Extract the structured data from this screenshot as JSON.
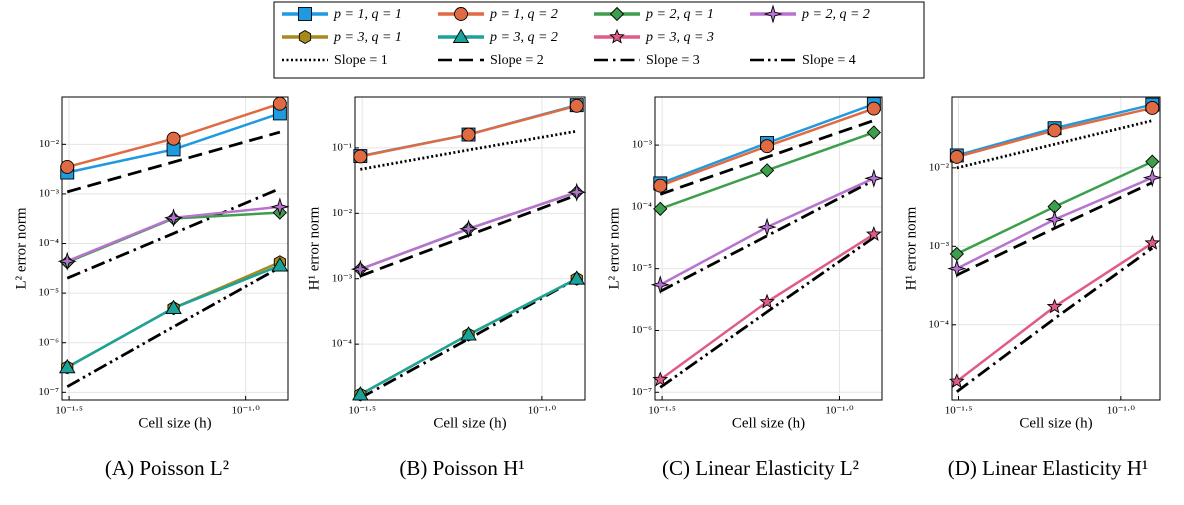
{
  "legend": {
    "entries": [
      {
        "name": "p = 1, q = 1",
        "color": "#1f9ae0",
        "marker": "square"
      },
      {
        "name": "p = 1, q = 2",
        "color": "#e06a42",
        "marker": "circle"
      },
      {
        "name": "p = 2, q = 1",
        "color": "#3d9e4c",
        "marker": "diamond"
      },
      {
        "name": "p = 2, q = 2",
        "color": "#b872cf",
        "marker": "star4"
      },
      {
        "name": "p = 3, q = 1",
        "color": "#a8891b",
        "marker": "hexagon"
      },
      {
        "name": "p = 3, q = 2",
        "color": "#19a39a",
        "marker": "triangle"
      },
      {
        "name": "p = 3, q = 3",
        "color": "#e05a8c",
        "marker": "star5"
      },
      {
        "name": "Slope = 1",
        "color": "#000000",
        "dash": "dotted"
      },
      {
        "name": "Slope = 2",
        "color": "#000000",
        "dash": "dashed"
      },
      {
        "name": "Slope = 3",
        "color": "#000000",
        "dash": "dashdot"
      },
      {
        "name": "Slope = 4",
        "color": "#000000",
        "dash": "dashdotdot"
      }
    ]
  },
  "chart_data": [
    {
      "type": "line",
      "caption": "(A) Poisson L²",
      "x_label": "Cell size (h)",
      "y_label": "L² error norm",
      "xscale": "log",
      "yscale": "log",
      "grid": true,
      "x": [
        0.03125,
        0.0625,
        0.125
      ],
      "xlim": [
        0.0302,
        0.1318
      ],
      "xticks": [
        {
          "value": 0.031623,
          "label": "10⁻¹·⁵"
        },
        {
          "value": 0.1,
          "label": "10⁻¹·⁰"
        }
      ],
      "ylim": [
        7e-08,
        0.09
      ],
      "yticks": [
        {
          "value": 1e-07,
          "label": "10⁻⁷"
        },
        {
          "value": 1e-06,
          "label": "10⁻⁶"
        },
        {
          "value": 1e-05,
          "label": "10⁻⁵"
        },
        {
          "value": 0.0001,
          "label": "10⁻⁴"
        },
        {
          "value": 0.001,
          "label": "10⁻³"
        },
        {
          "value": 0.01,
          "label": "10⁻²"
        }
      ],
      "series": [
        {
          "name": "Slope = 2",
          "values": [
            0.0011,
            0.0044,
            0.0176
          ]
        },
        {
          "name": "Slope = 3",
          "values": [
            2e-05,
            0.00016,
            0.00128
          ]
        },
        {
          "name": "Slope = 4",
          "values": [
            1.3e-07,
            2.1e-06,
            3.3e-05
          ]
        },
        {
          "name": "p = 1, q = 1",
          "values": [
            0.0027,
            0.0079,
            0.042
          ]
        },
        {
          "name": "p = 1, q = 2",
          "values": [
            0.0035,
            0.013,
            0.066
          ]
        },
        {
          "name": "p = 2, q = 1",
          "values": [
            4.2e-05,
            0.00032,
            0.00042
          ]
        },
        {
          "name": "p = 2, q = 2",
          "values": [
            4.4e-05,
            0.00033,
            0.00055
          ]
        },
        {
          "name": "p = 3, q = 1",
          "values": [
            3.2e-07,
            5e-06,
            4.2e-05
          ]
        },
        {
          "name": "p = 3, q = 2",
          "values": [
            3.2e-07,
            5e-06,
            3.6e-05
          ]
        }
      ]
    },
    {
      "type": "line",
      "caption": "(B) Poisson H¹",
      "x_label": "Cell size (h)",
      "y_label": "H¹ error norm",
      "xscale": "log",
      "yscale": "log",
      "grid": true,
      "x": [
        0.03125,
        0.0625,
        0.125
      ],
      "xlim": [
        0.0302,
        0.1318
      ],
      "xticks": [
        {
          "value": 0.031623,
          "label": "10⁻¹·⁵"
        },
        {
          "value": 0.1,
          "label": "10⁻¹·⁰"
        }
      ],
      "ylim": [
        1.4e-05,
        0.6
      ],
      "yticks": [
        {
          "value": 0.0001,
          "label": "10⁻⁴"
        },
        {
          "value": 0.001,
          "label": "10⁻³"
        },
        {
          "value": 0.01,
          "label": "10⁻²"
        },
        {
          "value": 0.1,
          "label": "10⁻¹"
        }
      ],
      "series": [
        {
          "name": "Slope = 1",
          "values": [
            0.047,
            0.093,
            0.18
          ]
        },
        {
          "name": "Slope = 2",
          "values": [
            0.0011,
            0.0046,
            0.019
          ]
        },
        {
          "name": "Slope = 3",
          "values": [
            1.5e-05,
            0.00012,
            0.001
          ]
        },
        {
          "name": "p = 1, q = 1",
          "values": [
            0.075,
            0.16,
            0.45
          ]
        },
        {
          "name": "p = 1, q = 2",
          "values": [
            0.074,
            0.16,
            0.44
          ]
        },
        {
          "name": "p = 2, q = 1",
          "values": [
            0.0014,
            0.0058,
            0.021
          ]
        },
        {
          "name": "p = 2, q = 2",
          "values": [
            0.0014,
            0.0058,
            0.021
          ]
        },
        {
          "name": "p = 3, q = 1",
          "values": [
            1.7e-05,
            0.00014,
            0.001
          ]
        },
        {
          "name": "p = 3, q = 2",
          "values": [
            1.7e-05,
            0.00014,
            0.001
          ]
        }
      ]
    },
    {
      "type": "line",
      "caption": "(C) Linear Elasticity L²",
      "x_label": "Cell size (h)",
      "y_label": "L² error norm",
      "xscale": "log",
      "yscale": "log",
      "grid": true,
      "x": [
        0.03125,
        0.0625,
        0.125
      ],
      "xlim": [
        0.0302,
        0.1318
      ],
      "xticks": [
        {
          "value": 0.031623,
          "label": "10⁻¹·⁵"
        },
        {
          "value": 0.1,
          "label": "10⁻¹·⁰"
        }
      ],
      "ylim": [
        7.5e-08,
        0.006
      ],
      "yticks": [
        {
          "value": 1e-07,
          "label": "10⁻⁷"
        },
        {
          "value": 1e-06,
          "label": "10⁻⁶"
        },
        {
          "value": 1e-05,
          "label": "10⁻⁵"
        },
        {
          "value": 0.0001,
          "label": "10⁻⁴"
        },
        {
          "value": 0.001,
          "label": "10⁻³"
        }
      ],
      "series": [
        {
          "name": "Slope = 2",
          "values": [
            0.00016,
            0.00064,
            0.0025
          ]
        },
        {
          "name": "Slope = 3",
          "values": [
            4.3e-06,
            3.4e-05,
            0.00027
          ]
        },
        {
          "name": "Slope = 4",
          "values": [
            1.2e-07,
            2e-06,
            3.2e-05
          ]
        },
        {
          "name": "p = 1, q = 1",
          "values": [
            0.00024,
            0.00108,
            0.0046
          ]
        },
        {
          "name": "p = 1, q = 2",
          "values": [
            0.00022,
            0.00096,
            0.0039
          ]
        },
        {
          "name": "p = 2, q = 1",
          "values": [
            9.3e-05,
            0.00039,
            0.0016
          ]
        },
        {
          "name": "p = 2, q = 2",
          "values": [
            5.5e-06,
            4.7e-05,
            0.00029
          ]
        },
        {
          "name": "p = 3, q = 3",
          "values": [
            1.6e-07,
            2.9e-06,
            3.6e-05
          ]
        }
      ]
    },
    {
      "type": "line",
      "caption": "(D) Linear Elasticity H¹",
      "x_label": "Cell size (h)",
      "y_label": "H¹ error norm",
      "xscale": "log",
      "yscale": "log",
      "grid": true,
      "x": [
        0.03125,
        0.0625,
        0.125
      ],
      "xlim": [
        0.0302,
        0.132
      ],
      "xticks": [
        {
          "value": 0.031623,
          "label": "10⁻¹·⁵"
        },
        {
          "value": 0.1,
          "label": "10⁻¹·⁰"
        }
      ],
      "ylim": [
        1.1e-05,
        0.08
      ],
      "yticks": [
        {
          "value": 0.0001,
          "label": "10⁻⁴"
        },
        {
          "value": 0.001,
          "label": "10⁻³"
        },
        {
          "value": 0.01,
          "label": "10⁻²"
        }
      ],
      "series": [
        {
          "name": "Slope = 1",
          "values": [
            0.01,
            0.02,
            0.04
          ]
        },
        {
          "name": "Slope = 2",
          "values": [
            0.00043,
            0.0017,
            0.0065
          ]
        },
        {
          "name": "Slope = 3",
          "values": [
            1.4e-05,
            0.00012,
            0.00095
          ]
        },
        {
          "name": "p = 1, q = 1",
          "values": [
            0.0144,
            0.032,
            0.064
          ]
        },
        {
          "name": "p = 1, q = 2",
          "values": [
            0.0138,
            0.03,
            0.058
          ]
        },
        {
          "name": "p = 2, q = 1",
          "values": [
            0.0008,
            0.0032,
            0.012
          ]
        },
        {
          "name": "p = 2, q = 2",
          "values": [
            0.00052,
            0.0022,
            0.0075
          ]
        },
        {
          "name": "p = 3, q = 3",
          "values": [
            1.9e-05,
            0.00017,
            0.0011
          ]
        }
      ]
    }
  ]
}
